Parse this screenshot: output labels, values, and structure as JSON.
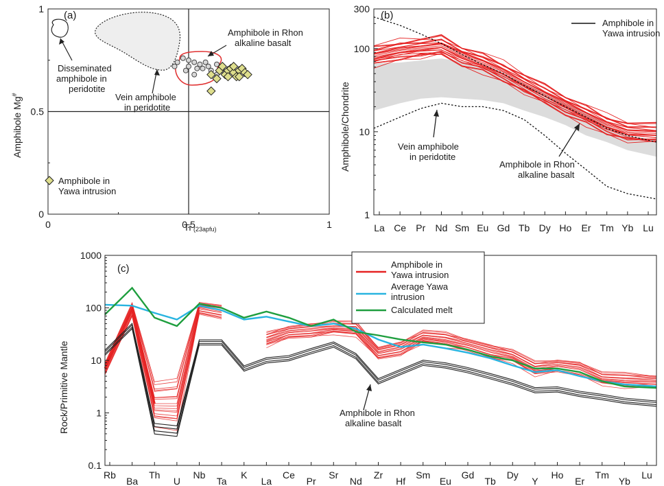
{
  "chart_data": [
    {
      "panel": "(a)",
      "type": "scatter",
      "xlabel": "Ti",
      "xlabel_sub": "(23apfu)",
      "ylabel": "Amphibole Mg",
      "ylabel_sup": "#",
      "xlim": [
        0,
        1
      ],
      "ylim": [
        0,
        1
      ],
      "x_ticks": [
        "0",
        "0.5",
        "1"
      ],
      "y_ticks": [
        "0",
        "0.5",
        "1"
      ],
      "reference_lines": {
        "x": 0.5,
        "y": 0.5
      },
      "fields": [
        {
          "name": "disseminated",
          "label_lines": [
            "Disseminated",
            "amphibole in",
            "peridotite"
          ],
          "style": "solid",
          "center": [
            0.05,
            0.86
          ]
        },
        {
          "name": "vein",
          "label_lines": [
            "Vein amphibole",
            "in peridotite"
          ],
          "style": "dotted",
          "fill": "#eeeeee",
          "center": [
            0.31,
            0.83
          ]
        },
        {
          "name": "rhon",
          "label_lines": [
            "Amphibole in Rhon",
            "alkaline basalt"
          ],
          "style": "solid",
          "stroke": "#e03030"
        }
      ],
      "series": [
        {
          "name": "Amphibole in Yawa intrusion",
          "marker": "diamond",
          "color": "#dede8c",
          "points": [
            [
              0.58,
              0.68
            ],
            [
              0.6,
              0.66
            ],
            [
              0.61,
              0.7
            ],
            [
              0.62,
              0.72
            ],
            [
              0.63,
              0.68
            ],
            [
              0.64,
              0.7
            ],
            [
              0.65,
              0.71
            ],
            [
              0.66,
              0.69
            ],
            [
              0.67,
              0.67
            ],
            [
              0.68,
              0.7
            ],
            [
              0.69,
              0.71
            ],
            [
              0.7,
              0.69
            ],
            [
              0.71,
              0.68
            ],
            [
              0.64,
              0.67
            ],
            [
              0.66,
              0.72
            ],
            [
              0.68,
              0.67
            ],
            [
              0.58,
              0.6
            ]
          ]
        },
        {
          "name": "rhon-points",
          "marker": "circle",
          "points": [
            [
              0.48,
              0.76
            ],
            [
              0.5,
              0.75
            ],
            [
              0.52,
              0.74
            ],
            [
              0.54,
              0.73
            ],
            [
              0.56,
              0.74
            ],
            [
              0.5,
              0.72
            ],
            [
              0.53,
              0.71
            ],
            [
              0.46,
              0.74
            ],
            [
              0.49,
              0.7
            ],
            [
              0.55,
              0.71
            ],
            [
              0.57,
              0.72
            ],
            [
              0.6,
              0.73
            ],
            [
              0.52,
              0.68
            ],
            [
              0.58,
              0.7
            ],
            [
              0.62,
              0.7
            ],
            [
              0.6,
              0.68
            ],
            [
              0.45,
              0.72
            ]
          ]
        }
      ]
    },
    {
      "panel": "(b)",
      "type": "line",
      "ylabel": "Amphibole/Chondrite",
      "yscale": "log",
      "ylim": [
        1,
        300
      ],
      "y_ticks": [
        "1",
        "10",
        "100",
        "300"
      ],
      "categories": [
        "La",
        "Ce",
        "Pr",
        "Nd",
        "Sm",
        "Eu",
        "Gd",
        "Tb",
        "Dy",
        "Ho",
        "Er",
        "Tm",
        "Yb",
        "Lu"
      ],
      "legend": "Amphibole in Yawa intrusion",
      "yawa_base": [
        82,
        95,
        102,
        108,
        82,
        68,
        52,
        38,
        28,
        21,
        16,
        12,
        10,
        9.5
      ],
      "yawa_offsets": [
        -0.1,
        -0.08,
        -0.06,
        -0.04,
        -0.02,
        0,
        0.02,
        0.04,
        0.06,
        0.08,
        0.1,
        0.12,
        -0.12,
        -0.15,
        0.15,
        0.05,
        -0.05,
        0.03,
        -0.03,
        0.09,
        -0.09,
        0.13,
        -0.13
      ],
      "rhon_band_upper": [
        66,
        68,
        72,
        76,
        70,
        60,
        50,
        38,
        30,
        22,
        17,
        12,
        9,
        8
      ],
      "rhon_band_lower": [
        18,
        22,
        25,
        26,
        25,
        24,
        22,
        18,
        15,
        12,
        9,
        7.5,
        6,
        5
      ],
      "vein_upper": [
        240,
        190,
        150,
        115,
        85,
        64,
        50,
        36,
        27,
        20,
        15,
        11,
        9,
        7.5
      ],
      "vein_lower": [
        11,
        15,
        19,
        22,
        20,
        20,
        18,
        14,
        9,
        5.5,
        3.5,
        2.2,
        1.8,
        1.55
      ],
      "annotations": {
        "vein": [
          "Vein amphibole",
          "in peridotite"
        ],
        "rhon": [
          "Amphibole in Rhon",
          "alkaline basalt"
        ]
      }
    },
    {
      "panel": "(c)",
      "type": "line",
      "ylabel": "Rock/Primitive Mantle",
      "yscale": "log",
      "ylim": [
        0.1,
        1000
      ],
      "y_ticks": [
        "0.1",
        "1",
        "10",
        "100",
        "1000"
      ],
      "categories": [
        "Rb",
        "Ba",
        "Th",
        "U",
        "Nb",
        "Ta",
        "K",
        "La",
        "Ce",
        "Pr",
        "Sr",
        "Nd",
        "Zr",
        "Hf",
        "Sm",
        "Eu",
        "Gd",
        "Tb",
        "Dy",
        "Y",
        "Ho",
        "Er",
        "Tm",
        "Yb",
        "Lu"
      ],
      "series": [
        {
          "name": "Amphibole in Yawa intrusion",
          "color": "#e52222",
          "values": [
            7,
            95,
            1.5,
            1.5,
            100,
            85,
            null,
            25,
            35,
            38,
            42,
            40,
            14,
            17,
            28,
            25,
            20,
            15,
            12,
            7,
            8,
            7,
            4.5,
            4.2,
            4.0
          ]
        },
        {
          "name": "Average Yawa intrusion",
          "color": "#28b4e0",
          "values": [
            115,
            110,
            80,
            60,
            110,
            90,
            60,
            68,
            55,
            45,
            50,
            40,
            25,
            18,
            20,
            17,
            14,
            11,
            8,
            6,
            6.5,
            5,
            4,
            3.5,
            3.2
          ]
        },
        {
          "name": "Calculated melt",
          "color": "#1e9e3e",
          "values": [
            75,
            240,
            65,
            45,
            120,
            100,
            65,
            85,
            65,
            45,
            60,
            35,
            30,
            25,
            22,
            20,
            16,
            12,
            10,
            7,
            7,
            6,
            4,
            3.2,
            3.0
          ]
        },
        {
          "name": "Amphibole in Rhon alkaline basalt",
          "color": "#222222",
          "values": [
            14,
            45,
            0.5,
            0.45,
            22,
            22,
            7,
            10,
            11,
            15,
            20,
            12,
            4,
            6,
            9,
            8,
            6.5,
            5,
            3.8,
            2.7,
            2.8,
            2.3,
            2,
            1.7,
            1.5
          ]
        }
      ],
      "annotation": [
        "Amphibole in Rhon",
        "alkaline basalt"
      ],
      "legend_items": [
        {
          "lines": [
            "Amphibole in",
            "Yawa intrusion"
          ],
          "color": "#e52222"
        },
        {
          "lines": [
            "Average Yawa",
            " intrusion"
          ],
          "color": "#28b4e0"
        },
        {
          "lines": [
            "Calculated melt"
          ],
          "color": "#1e9e3e"
        }
      ]
    }
  ]
}
